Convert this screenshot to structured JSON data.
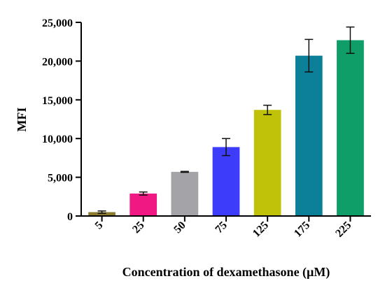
{
  "chart_data": {
    "type": "bar",
    "title": "",
    "xlabel": "Concentration of dexamethasone (µM)",
    "ylabel": "MFI",
    "categories": [
      "5",
      "25",
      "50",
      "75",
      "125",
      "175",
      "225"
    ],
    "values": [
      500,
      2900,
      5700,
      8900,
      13700,
      20700,
      22700
    ],
    "errors": [
      150,
      200,
      60,
      1100,
      600,
      2100,
      1700
    ],
    "colors": [
      "#8C7A2E",
      "#F01882",
      "#A3A3A8",
      "#3C3CFA",
      "#C0C20A",
      "#0C8099",
      "#0F9E67"
    ],
    "ylim": [
      0,
      25000
    ],
    "yticks": [
      0,
      5000,
      10000,
      15000,
      20000,
      25000
    ],
    "ytick_labels": [
      "0",
      "5,000",
      "10,000",
      "15,000",
      "20,000",
      "25,000"
    ],
    "grid": false,
    "legend": "none"
  }
}
